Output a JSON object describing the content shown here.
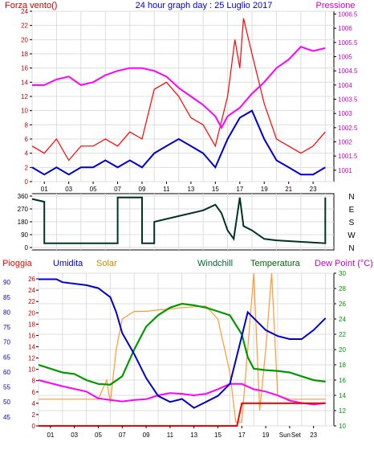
{
  "header": {
    "title": "24 hour graph day : 25 Luglio 2017",
    "left_label": "Forza vento()",
    "right_label": "Pressione"
  },
  "bottom_header": {
    "labels": [
      {
        "text": "Pioggia",
        "color": "#ff0000"
      },
      {
        "text": "Umidita",
        "color": "#0000cc"
      },
      {
        "text": "Solar",
        "color": "#cc8800"
      },
      {
        "text": "Windchill",
        "color": "#006633"
      },
      {
        "text": "Temperatura",
        "color": "#006600"
      },
      {
        "text": "Dew Point (°C)",
        "color": "#cc00cc"
      }
    ]
  },
  "sun_labels": [
    "Sun",
    "Set"
  ],
  "colors": {
    "wind_gust": "#ff0000",
    "wind_avg": "#0000cc",
    "pressure": "#ff00ff",
    "direction": "#003322",
    "rain": "#ff0000",
    "humidity": "#0000cc",
    "solar": "#ff9933",
    "temperature": "#009900",
    "windchill": "#006633",
    "dewpoint": "#ff00ff",
    "axis_left": "#cc0000",
    "axis_right": "#cc00cc",
    "axis_blue": "#0000cc",
    "grid": "#dddddd"
  },
  "chart_data": [
    {
      "type": "line",
      "name": "wind-pressure",
      "x_ticks": [
        "01",
        "03",
        "05",
        "07",
        "09",
        "11",
        "13",
        "15",
        "17",
        "19",
        "21",
        "23"
      ],
      "left_axis": {
        "ticks": [
          0,
          2,
          4,
          6,
          8,
          10,
          12,
          14,
          16,
          18,
          20,
          22,
          24
        ],
        "range": [
          0,
          24
        ]
      },
      "right_axis": {
        "ticks": [
          "1001",
          "1001.5",
          "1002",
          "1002.5",
          "1003",
          "1003.5",
          "1004",
          "1004.5",
          "1005",
          "1005.5",
          "1006",
          "1006.5"
        ],
        "range": [
          1000.6,
          1006.6
        ]
      },
      "series": [
        {
          "key": "gust",
          "axis": "left",
          "points": [
            [
              0,
              5
            ],
            [
              1,
              4
            ],
            [
              2,
              6
            ],
            [
              3,
              3
            ],
            [
              4,
              5
            ],
            [
              5,
              5
            ],
            [
              6,
              6
            ],
            [
              7,
              5
            ],
            [
              8,
              7
            ],
            [
              9,
              6
            ],
            [
              10,
              13
            ],
            [
              11,
              14
            ],
            [
              12,
              12
            ],
            [
              13,
              9
            ],
            [
              14,
              8
            ],
            [
              15,
              5
            ],
            [
              16,
              12
            ],
            [
              16.6,
              20
            ],
            [
              17,
              16
            ],
            [
              17.3,
              23
            ],
            [
              18,
              18
            ],
            [
              19,
              11
            ],
            [
              20,
              6
            ],
            [
              21,
              5
            ],
            [
              22,
              4
            ],
            [
              23,
              5
            ],
            [
              24,
              7
            ]
          ]
        },
        {
          "key": "avg",
          "axis": "left",
          "points": [
            [
              0,
              2
            ],
            [
              1,
              1
            ],
            [
              2,
              2
            ],
            [
              3,
              1
            ],
            [
              4,
              2
            ],
            [
              5,
              2
            ],
            [
              6,
              3
            ],
            [
              7,
              2
            ],
            [
              8,
              3
            ],
            [
              9,
              2
            ],
            [
              10,
              4
            ],
            [
              11,
              5
            ],
            [
              12,
              6
            ],
            [
              13,
              5
            ],
            [
              14,
              4
            ],
            [
              15,
              2
            ],
            [
              16,
              6
            ],
            [
              17,
              9
            ],
            [
              18,
              10
            ],
            [
              19,
              6
            ],
            [
              20,
              3
            ],
            [
              21,
              2
            ],
            [
              22,
              1
            ],
            [
              23,
              1
            ],
            [
              24,
              2
            ]
          ]
        },
        {
          "key": "pressure",
          "axis": "right",
          "points": [
            [
              0,
              1004
            ],
            [
              1,
              1004
            ],
            [
              2,
              1004.2
            ],
            [
              3,
              1004.3
            ],
            [
              4,
              1004
            ],
            [
              5,
              1004.1
            ],
            [
              6,
              1004.35
            ],
            [
              7,
              1004.5
            ],
            [
              8,
              1004.6
            ],
            [
              9,
              1004.6
            ],
            [
              10,
              1004.5
            ],
            [
              11,
              1004.3
            ],
            [
              12,
              1003.9
            ],
            [
              13,
              1003.6
            ],
            [
              14,
              1003.3
            ],
            [
              15,
              1002.9
            ],
            [
              15.5,
              1002.5
            ],
            [
              16,
              1002.9
            ],
            [
              17,
              1003.2
            ],
            [
              18,
              1003.7
            ],
            [
              19,
              1004.1
            ],
            [
              20,
              1004.6
            ],
            [
              21,
              1004.9
            ],
            [
              22,
              1005.35
            ],
            [
              23,
              1005.2
            ],
            [
              24,
              1005.3
            ]
          ]
        }
      ]
    },
    {
      "type": "line",
      "name": "wind-direction",
      "left_axis": {
        "ticks": [
          0,
          90,
          180,
          270,
          360
        ],
        "range": [
          0,
          360
        ]
      },
      "right_axis": {
        "ticks": [
          "N",
          "W",
          "S",
          "E",
          "N"
        ]
      },
      "series": [
        {
          "key": "direction",
          "points": [
            [
              0,
              340
            ],
            [
              1,
              320
            ],
            [
              1,
              30
            ],
            [
              7,
              30
            ],
            [
              7,
              350
            ],
            [
              9,
              350
            ],
            [
              9,
              30
            ],
            [
              10,
              30
            ],
            [
              10,
              180
            ],
            [
              12,
              220
            ],
            [
              14,
              260
            ],
            [
              15,
              300
            ],
            [
              15.5,
              240
            ],
            [
              16,
              120
            ],
            [
              16.5,
              60
            ],
            [
              17,
              350
            ],
            [
              17.3,
              150
            ],
            [
              18,
              120
            ],
            [
              19,
              60
            ],
            [
              20,
              50
            ],
            [
              24,
              30
            ],
            [
              24,
              350
            ]
          ]
        }
      ]
    },
    {
      "type": "line",
      "name": "rain-humidity-temperature",
      "x_ticks": [
        "01",
        "03",
        "05",
        "07",
        "09",
        "11",
        "13",
        "15",
        "17",
        "19",
        "21",
        "23"
      ],
      "rain_axis": {
        "ticks": [
          0,
          2,
          4,
          6,
          8,
          10,
          12,
          14,
          16,
          18,
          20,
          22,
          24,
          26
        ],
        "range": [
          0,
          27
        ]
      },
      "humidity_axis": {
        "ticks": [
          45,
          50,
          55,
          60,
          65,
          70,
          75,
          80,
          85,
          90
        ],
        "range": [
          42,
          93
        ]
      },
      "temperature_axis": {
        "ticks": [
          10,
          12,
          14,
          16,
          18,
          20,
          22,
          24,
          26,
          28,
          30
        ],
        "range": [
          10,
          30
        ]
      },
      "series": [
        {
          "key": "rain",
          "axis": "rain",
          "points": [
            [
              0,
              0
            ],
            [
              16.6,
              0
            ],
            [
              17,
              4
            ],
            [
              24,
              4
            ]
          ]
        },
        {
          "key": "humidity",
          "axis": "humidity",
          "points": [
            [
              0,
              91
            ],
            [
              1.5,
              91
            ],
            [
              2,
              90
            ],
            [
              4,
              89
            ],
            [
              5,
              88
            ],
            [
              6,
              85
            ],
            [
              6.5,
              80
            ],
            [
              7,
              73
            ],
            [
              8,
              66
            ],
            [
              9,
              58
            ],
            [
              10,
              52
            ],
            [
              11,
              50
            ],
            [
              12,
              51
            ],
            [
              13,
              48
            ],
            [
              14,
              50
            ],
            [
              15,
              52
            ],
            [
              16,
              56
            ],
            [
              17,
              72
            ],
            [
              17.5,
              80
            ],
            [
              18,
              78
            ],
            [
              19,
              74
            ],
            [
              20,
              72
            ],
            [
              21,
              71
            ],
            [
              22,
              71
            ],
            [
              23,
              74
            ],
            [
              24,
              78
            ]
          ]
        },
        {
          "key": "solar",
          "axis": "temperature",
          "points": [
            [
              0,
              13.5
            ],
            [
              5,
              13.5
            ],
            [
              5.7,
              16
            ],
            [
              6,
              13
            ],
            [
              6.5,
              20
            ],
            [
              7,
              24
            ],
            [
              8,
              25
            ],
            [
              9,
              25
            ],
            [
              10,
              25.2
            ],
            [
              11,
              25.3
            ],
            [
              12,
              25.5
            ],
            [
              13,
              25.6
            ],
            [
              14,
              25.7
            ],
            [
              15,
              24
            ],
            [
              16,
              17
            ],
            [
              16.5,
              10.5
            ],
            [
              17,
              10.5
            ],
            [
              17.6,
              22
            ],
            [
              18,
              30
            ],
            [
              18.5,
              12
            ],
            [
              19,
              20
            ],
            [
              19.5,
              30
            ],
            [
              20,
              14
            ],
            [
              21,
              13.5
            ],
            [
              24,
              13.5
            ]
          ]
        },
        {
          "key": "temperature",
          "axis": "temperature",
          "points": [
            [
              0,
              18
            ],
            [
              1,
              17.5
            ],
            [
              2,
              17
            ],
            [
              3,
              16.8
            ],
            [
              4,
              16
            ],
            [
              5,
              15.5
            ],
            [
              6,
              15.4
            ],
            [
              7,
              16.5
            ],
            [
              8,
              20
            ],
            [
              9,
              23
            ],
            [
              10,
              24.5
            ],
            [
              11,
              25.5
            ],
            [
              12,
              26
            ],
            [
              13,
              25.8
            ],
            [
              14,
              25.5
            ],
            [
              15,
              25
            ],
            [
              16,
              24.5
            ],
            [
              17,
              22
            ],
            [
              17.5,
              19
            ],
            [
              18,
              17.5
            ],
            [
              19,
              17.3
            ],
            [
              20,
              17.2
            ],
            [
              21,
              17
            ],
            [
              22,
              16.5
            ],
            [
              23,
              16
            ],
            [
              24,
              15.8
            ]
          ]
        },
        {
          "key": "dewpoint",
          "axis": "temperature",
          "points": [
            [
              0,
              16
            ],
            [
              2,
              15.2
            ],
            [
              4,
              14.5
            ],
            [
              5,
              13.6
            ],
            [
              6,
              13.4
            ],
            [
              7,
              13.2
            ],
            [
              8,
              13.4
            ],
            [
              9,
              13.5
            ],
            [
              10,
              14
            ],
            [
              11,
              14.3
            ],
            [
              12,
              14.2
            ],
            [
              13,
              14
            ],
            [
              14,
              14.2
            ],
            [
              15,
              14.8
            ],
            [
              16,
              15.5
            ],
            [
              17,
              15.5
            ],
            [
              18,
              14.8
            ],
            [
              19,
              14.5
            ],
            [
              20,
              14
            ],
            [
              21,
              13.3
            ],
            [
              22,
              13
            ],
            [
              23,
              12.8
            ],
            [
              24,
              13
            ]
          ]
        }
      ]
    }
  ]
}
